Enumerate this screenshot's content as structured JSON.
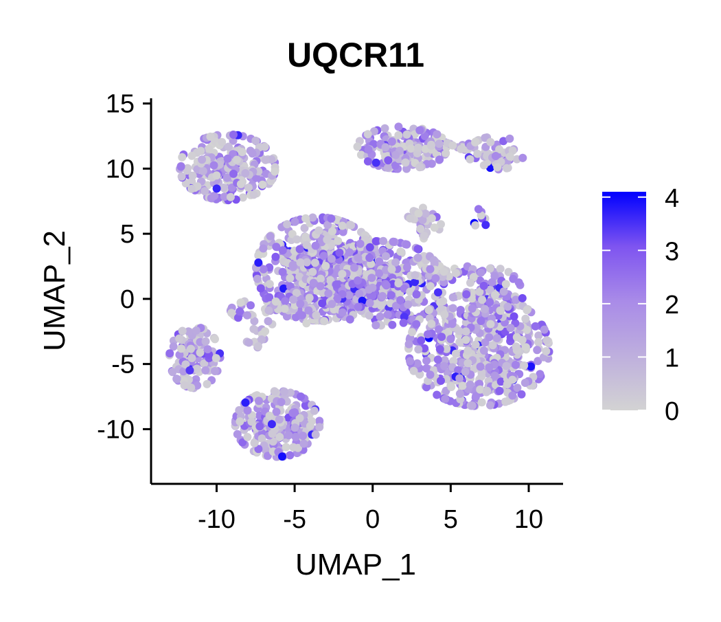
{
  "chart_data": {
    "type": "scatter",
    "title": "UQCR11",
    "xlabel": "UMAP_1",
    "ylabel": "UMAP_2",
    "xlim": [
      -14.2,
      12.2
    ],
    "ylim": [
      -14.2,
      15.4
    ],
    "x_ticks": [
      -10,
      -5,
      0,
      5,
      10
    ],
    "x_tick_labels": [
      "-10",
      "-5",
      "0",
      "5",
      "10"
    ],
    "y_ticks": [
      -10,
      -5,
      0,
      5,
      10,
      15
    ],
    "y_tick_labels": [
      "-10",
      "-5",
      "0",
      "5",
      "10",
      "15"
    ],
    "grid": false,
    "legend_position": "right",
    "color_scale": {
      "min": 0,
      "max": 4.1,
      "low_color": "#d3d3d3",
      "mid_color": "#a98be8",
      "high_color": "#0000ff",
      "ticks": [
        0,
        1,
        2,
        3,
        4
      ],
      "tick_labels": [
        "0",
        "1",
        "2",
        "3",
        "4"
      ]
    },
    "point_size": 0.8,
    "clusters": [
      {
        "id": "top-left",
        "center": [
          -9.3,
          10.1
        ],
        "spread": [
          1.7,
          1.4
        ],
        "n": 230,
        "mean_expression": 1.3
      },
      {
        "id": "top-center",
        "center": [
          1.9,
          11.6
        ],
        "spread": [
          1.6,
          0.9
        ],
        "n": 170,
        "mean_expression": 1.3
      },
      {
        "id": "top-bridge",
        "center": [
          4.9,
          11.7
        ],
        "spread": [
          1.2,
          0.15
        ],
        "n": 25,
        "mean_expression": 0.9
      },
      {
        "id": "top-right",
        "center": [
          7.9,
          11.2
        ],
        "spread": [
          1.0,
          0.7
        ],
        "n": 60,
        "mean_expression": 1.4
      },
      {
        "id": "center-left-main",
        "center": [
          -3.5,
          2.3
        ],
        "spread": [
          2.2,
          2.2
        ],
        "n": 520,
        "mean_expression": 1.5
      },
      {
        "id": "center-right-main",
        "center": [
          0.6,
          1.2
        ],
        "spread": [
          2.2,
          1.8
        ],
        "n": 380,
        "mean_expression": 1.7
      },
      {
        "id": "center-tail",
        "center": [
          -5.5,
          -0.9
        ],
        "spread": [
          2.0,
          0.6
        ],
        "n": 80,
        "mean_expression": 1.3
      },
      {
        "id": "center-top-small",
        "center": [
          3.3,
          5.9
        ],
        "spread": [
          0.6,
          0.7
        ],
        "n": 35,
        "mean_expression": 0.5
      },
      {
        "id": "center-right-tail",
        "center": [
          4.5,
          2.0
        ],
        "spread": [
          1.2,
          0.4
        ],
        "n": 30,
        "mean_expression": 1.0
      },
      {
        "id": "right-large",
        "center": [
          6.8,
          -3.9
        ],
        "spread": [
          2.5,
          2.4
        ],
        "n": 520,
        "mean_expression": 1.5
      },
      {
        "id": "right-upper",
        "center": [
          7.8,
          0.2
        ],
        "spread": [
          1.0,
          1.2
        ],
        "n": 90,
        "mean_expression": 1.6
      },
      {
        "id": "far-left",
        "center": [
          -11.4,
          -4.5
        ],
        "spread": [
          0.9,
          1.3
        ],
        "n": 110,
        "mean_expression": 1.3
      },
      {
        "id": "left-small",
        "center": [
          -7.4,
          -3.0
        ],
        "spread": [
          0.4,
          0.4
        ],
        "n": 15,
        "mean_expression": 1.0
      },
      {
        "id": "bottom-left",
        "center": [
          -6.1,
          -9.6
        ],
        "spread": [
          1.5,
          1.4
        ],
        "n": 220,
        "mean_expression": 1.3
      },
      {
        "id": "small-line",
        "center": [
          7.0,
          6.2
        ],
        "spread": [
          0.3,
          0.5
        ],
        "n": 8,
        "mean_expression": 2.8
      }
    ]
  }
}
